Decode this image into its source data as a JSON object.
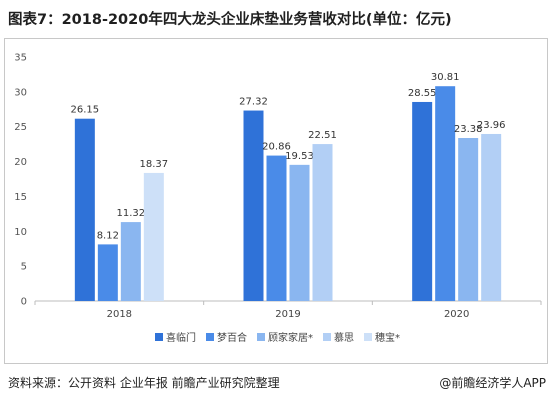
{
  "footer": {
    "source": "资料来源：公开资料 企业年报 前瞻产业研究院整理",
    "brand": "@前瞻经济学人APP"
  },
  "chart_data": {
    "type": "bar",
    "title": "图表7：2018-2020年四大龙头企业床垫业务营收对比(单位：亿元)",
    "categories": [
      "2018",
      "2019",
      "2020"
    ],
    "ylim": [
      0,
      35
    ],
    "yticks": [
      0,
      5,
      10,
      15,
      20,
      25,
      30,
      35
    ],
    "legend_position": "bottom",
    "grid": false,
    "series": [
      {
        "name": "喜临门",
        "color": "#2f72d8",
        "values": [
          26.15,
          27.32,
          28.55
        ]
      },
      {
        "name": "梦百合",
        "color": "#4a8be8",
        "values": [
          8.12,
          20.86,
          30.81
        ]
      },
      {
        "name": "顾家家居*",
        "color": "#8ab6f0",
        "values": [
          11.32,
          19.53,
          23.38
        ]
      },
      {
        "name": "慕思",
        "color": "#b2cff5",
        "values": [
          null,
          22.51,
          23.96
        ]
      },
      {
        "name": "穗宝*",
        "color": "#cde0f8",
        "values": [
          18.37,
          null,
          null
        ]
      }
    ]
  }
}
